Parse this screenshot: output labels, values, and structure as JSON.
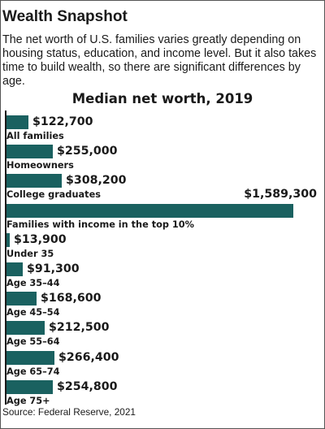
{
  "header": {
    "title": "Wealth Snapshot",
    "intro": "The net worth of U.S. families varies greatly depending on housing status, education, and income level. But it also takes time to build wealth, so there are significant differences by age."
  },
  "source": "Source: Federal Reserve, 2021",
  "colors": {
    "bar": "#1a6160",
    "text": "#1a1a1a"
  },
  "chart_data": {
    "type": "bar",
    "orientation": "horizontal",
    "title": "Median net worth, 2019",
    "xlabel": "",
    "ylabel": "",
    "grid": false,
    "categories": [
      "All families",
      "Homeowners",
      "College graduates",
      "Families with income in the top 10%",
      "Under 35",
      "Age 35–44",
      "Age 45–54",
      "Age 55–64",
      "Age 65–74",
      "Age 75+"
    ],
    "values": [
      122700,
      255000,
      308200,
      1589300,
      13900,
      91300,
      168600,
      212500,
      266400,
      254800
    ],
    "value_labels": [
      "$122,700",
      "$255,000",
      "$308,200",
      "$1,589,300",
      "$13,900",
      "$91,300",
      "$168,600",
      "$212,500",
      "$266,400",
      "$254,800"
    ],
    "xlim": [
      0,
      1589300
    ]
  }
}
